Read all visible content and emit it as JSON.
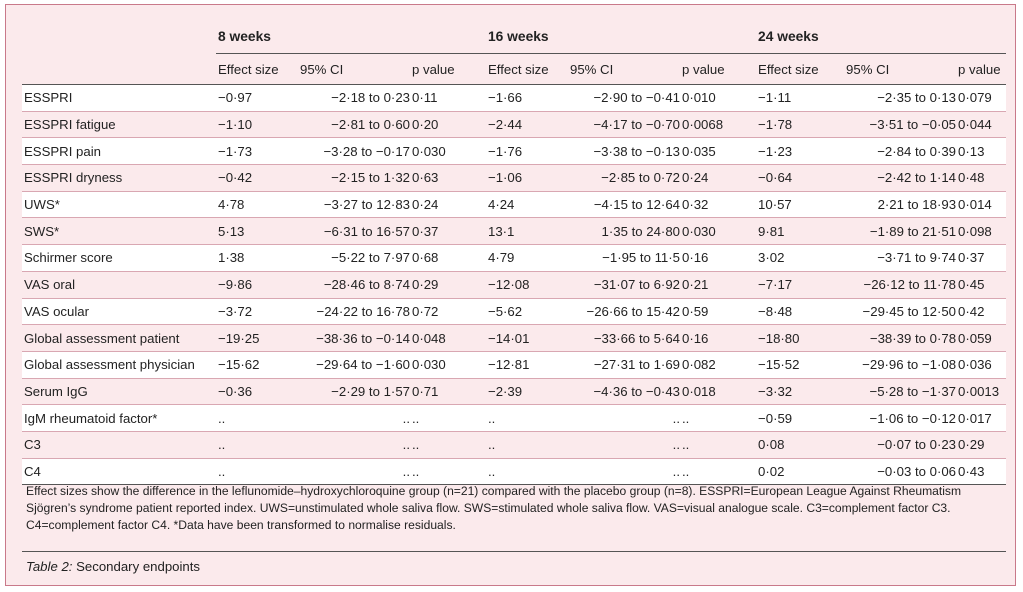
{
  "table": {
    "groups": [
      "8 weeks",
      "16 weeks",
      "24 weeks"
    ],
    "subheaders": [
      "Effect size",
      "95% CI",
      "p value"
    ],
    "rows": [
      {
        "label": "ESSPRI",
        "cells": [
          "−0·97",
          "−2·18 to 0·23",
          "0·11",
          "−1·66",
          "−2·90 to −0·41",
          "0·010",
          "−1·11",
          "−2·35 to 0·13",
          "0·079"
        ]
      },
      {
        "label": "ESSPRI fatigue",
        "cells": [
          "−1·10",
          "−2·81 to 0·60",
          "0·20",
          "−2·44",
          "−4·17 to −0·70",
          "0·0068",
          "−1·78",
          "−3·51 to −0·05",
          "0·044"
        ]
      },
      {
        "label": "ESSPRI pain",
        "cells": [
          "−1·73",
          "−3·28 to −0·17",
          "0·030",
          "−1·76",
          "−3·38 to −0·13",
          "0·035",
          "−1·23",
          "−2·84 to 0·39",
          "0·13"
        ]
      },
      {
        "label": "ESSPRI dryness",
        "cells": [
          "−0·42",
          "−2·15 to 1·32",
          "0·63",
          "−1·06",
          "−2·85 to 0·72",
          "0·24",
          "−0·64",
          "−2·42 to 1·14",
          "0·48"
        ]
      },
      {
        "label": "UWS*",
        "cells": [
          "4·78",
          "−3·27 to 12·83",
          "0·24",
          "4·24",
          "−4·15 to 12·64",
          "0·32",
          "10·57",
          "2·21 to 18·93",
          "0·014"
        ]
      },
      {
        "label": "SWS*",
        "cells": [
          "5·13",
          "−6·31 to 16·57",
          "0·37",
          "13·1",
          "1·35 to 24·80",
          "0·030",
          "9·81",
          "−1·89 to 21·51",
          "0·098"
        ]
      },
      {
        "label": "Schirmer score",
        "cells": [
          "1·38",
          "−5·22 to 7·97",
          "0·68",
          "4·79",
          "−1·95 to 11·5",
          "0·16",
          "3·02",
          "−3·71 to 9·74",
          "0·37"
        ]
      },
      {
        "label": "VAS oral",
        "cells": [
          "−9·86",
          "−28·46 to 8·74",
          "0·29",
          "−12·08",
          "−31·07 to 6·92",
          "0·21",
          "−7·17",
          "−26·12 to 11·78",
          "0·45"
        ]
      },
      {
        "label": "VAS ocular",
        "cells": [
          "−3·72",
          "−24·22 to 16·78",
          "0·72",
          "−5·62",
          "−26·66 to 15·42",
          "0·59",
          "−8·48",
          "−29·45 to 12·50",
          "0·42"
        ]
      },
      {
        "label": "Global assessment patient",
        "cells": [
          "−19·25",
          "−38·36 to −0·14",
          "0·048",
          "−14·01",
          "−33·66 to 5·64",
          "0·16",
          "−18·80",
          "−38·39 to 0·78",
          "0·059"
        ]
      },
      {
        "label": "Global assessment physician",
        "cells": [
          "−15·62",
          "−29·64 to −1·60",
          "0·030",
          "−12·81",
          "−27·31 to 1·69",
          "0·082",
          "−15·52",
          "−29·96 to −1·08",
          "0·036"
        ]
      },
      {
        "label": "Serum IgG",
        "cells": [
          "−0·36",
          "−2·29 to 1·57",
          "0·71",
          "−2·39",
          "−4·36 to −0·43",
          "0·018",
          "−3·32",
          "−5·28 to −1·37",
          "0·0013"
        ]
      },
      {
        "label": "IgM rheumatoid factor*",
        "cells": [
          "..",
          "..",
          "..",
          "..",
          "..",
          "..",
          "−0·59",
          "−1·06 to −0·12",
          "0·017"
        ]
      },
      {
        "label": "C3",
        "cells": [
          "..",
          "..",
          "..",
          "..",
          "..",
          "..",
          "0·08",
          "−0·07 to 0·23",
          "0·29"
        ]
      },
      {
        "label": "C4",
        "cells": [
          "..",
          "..",
          "..",
          "..",
          "..",
          "..",
          "0·02",
          "−0·03 to 0·06",
          "0·43"
        ]
      }
    ]
  },
  "footnote": "Effect sizes show the difference in the leflunomide–hydroxychloroquine group (n=21) compared with the placebo group (n=8). ESSPRI=European League Against Rheumatism Sjögren’s syndrome patient reported index. UWS=unstimulated whole saliva flow. SWS=stimulated whole saliva flow. VAS=visual analogue scale. C3=complement factor C3. C4=complement factor C4. *Data have been transformed to normalise residuals.",
  "caption": {
    "label": "Table 2:",
    "text": " Secondary endpoints"
  },
  "colors": {
    "panel_bg": "#fbeaec",
    "panel_border": "#c9798a",
    "row_white": "#ffffff"
  }
}
